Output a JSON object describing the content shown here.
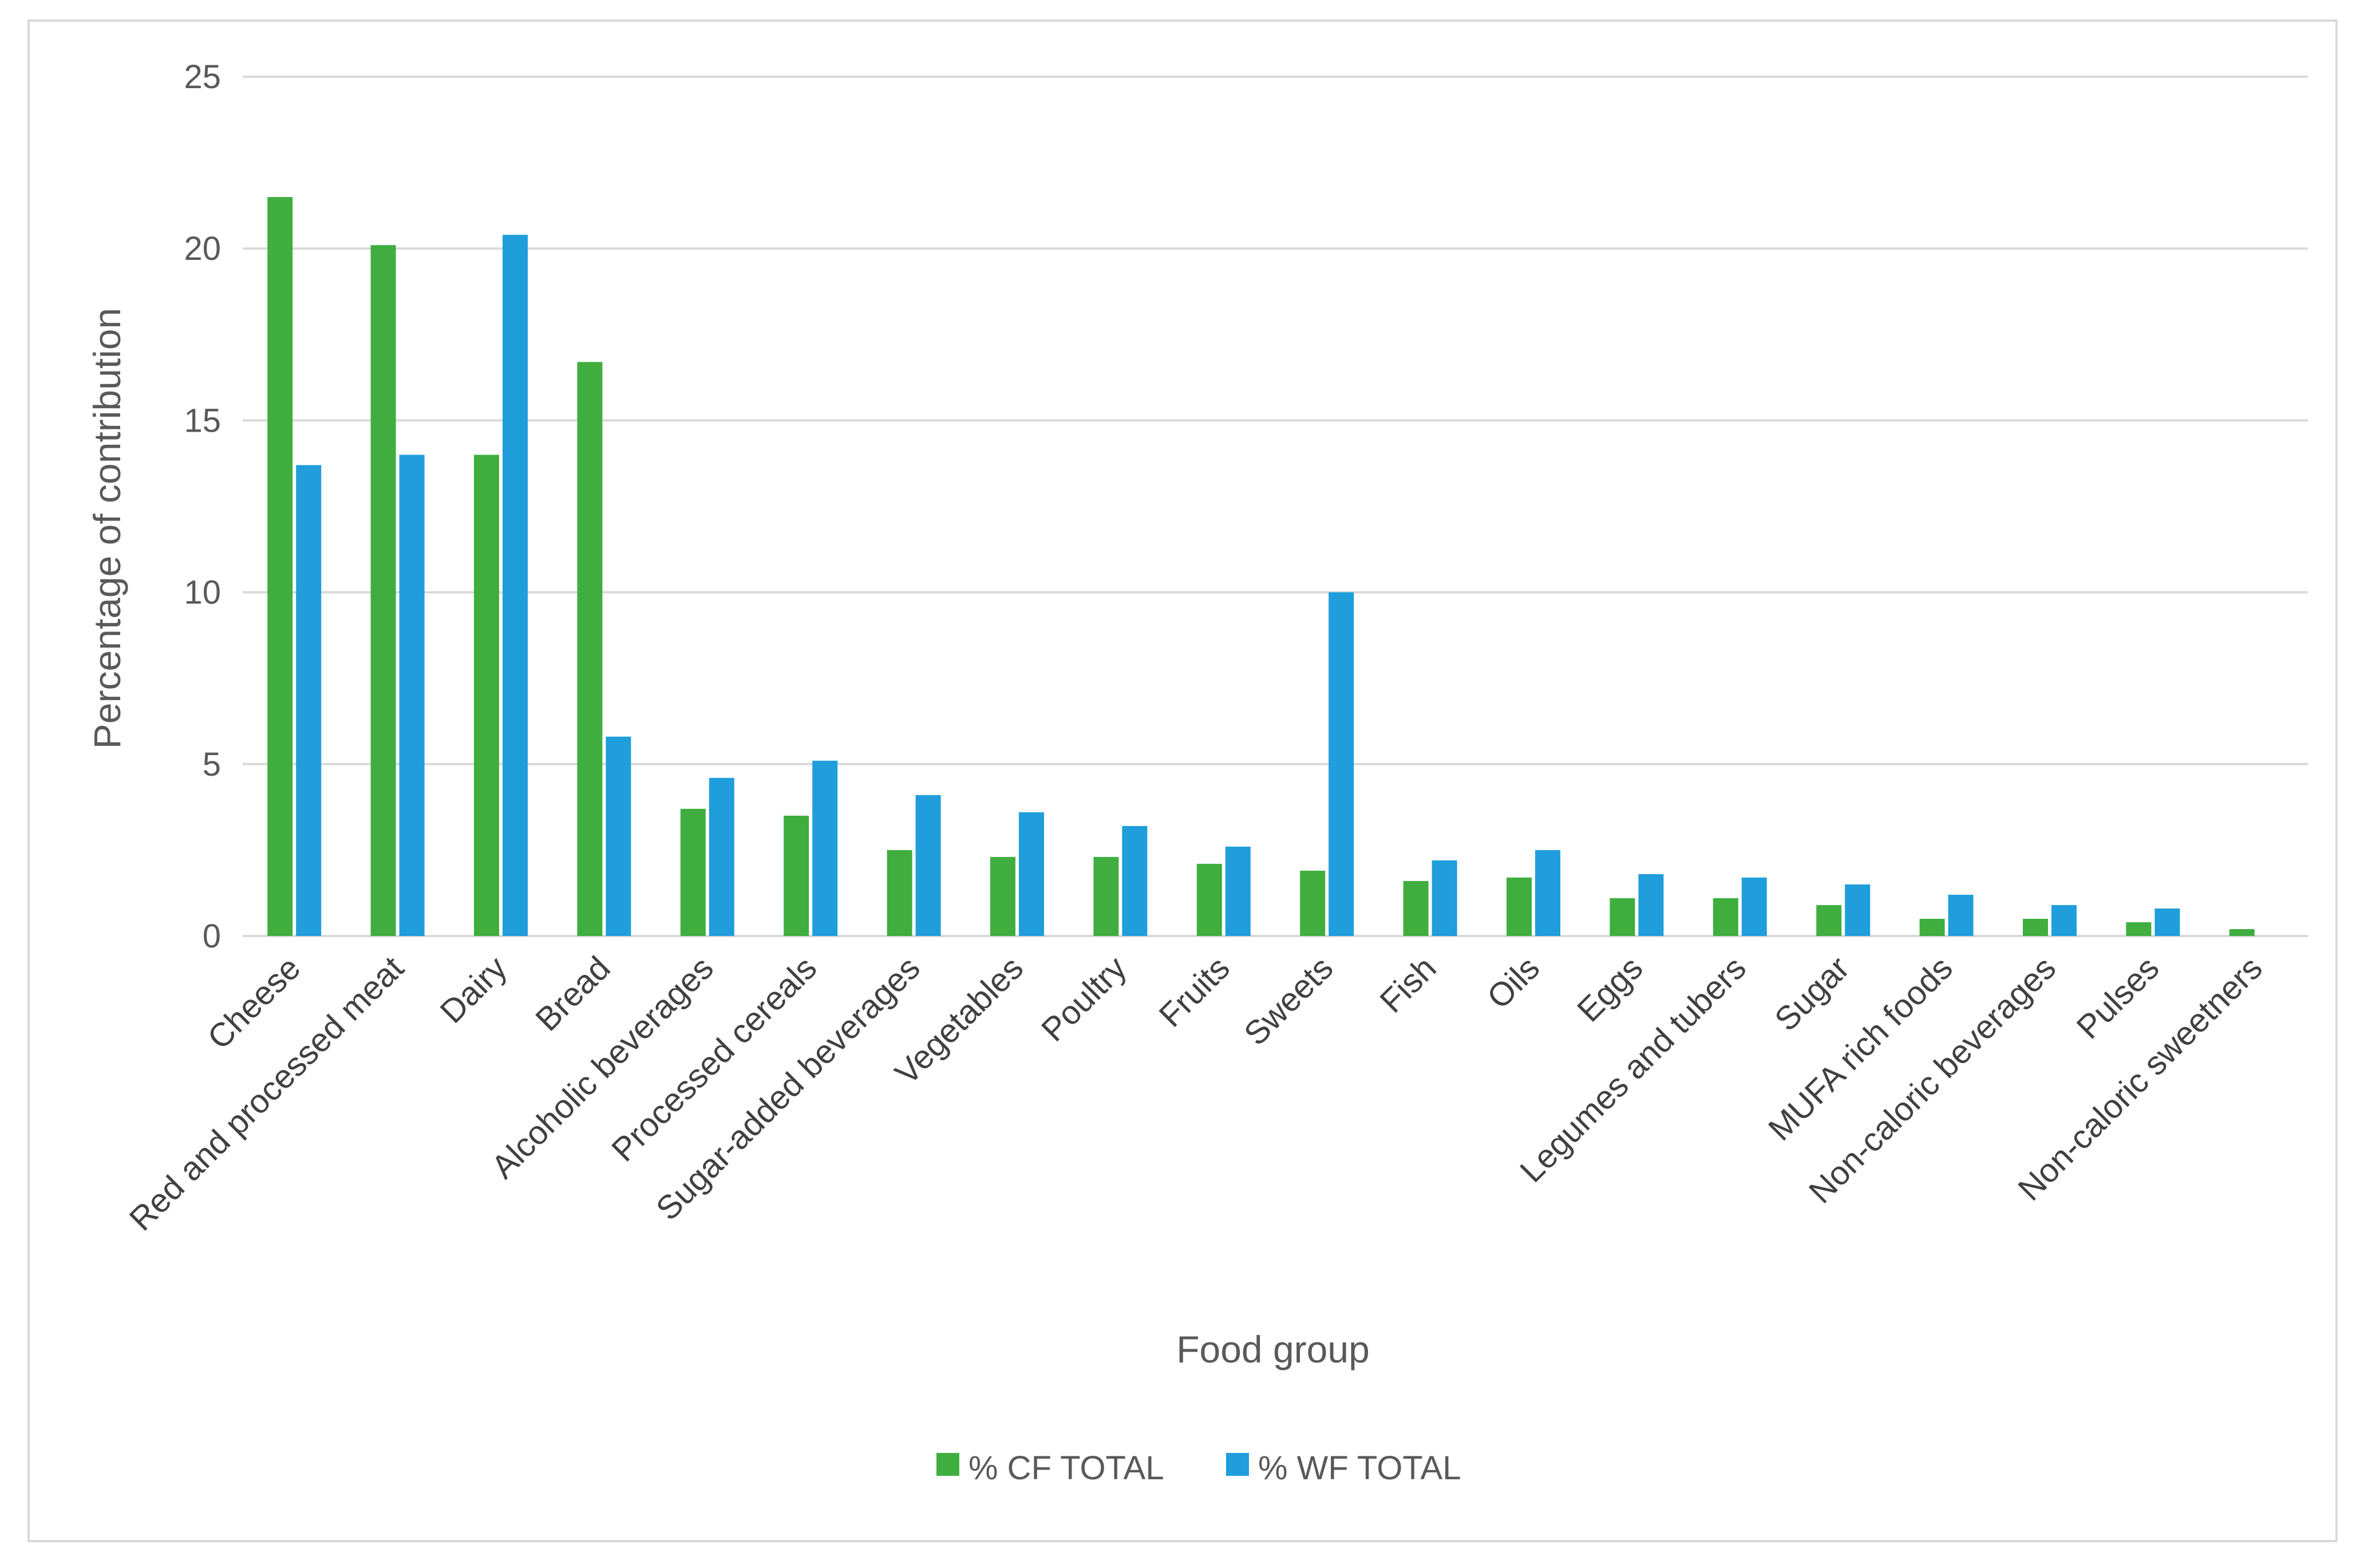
{
  "chart_data": {
    "type": "bar",
    "title": "",
    "xlabel": "Food group",
    "ylabel": "Percentage of contribution",
    "ylim": [
      0,
      25
    ],
    "yticks": [
      0,
      5,
      10,
      15,
      20,
      25
    ],
    "grid": true,
    "legend_position": "bottom-center",
    "categories": [
      "Cheese",
      "Red and processed meat",
      "Dairy",
      "Bread",
      "Alcoholic beverages",
      "Processed cereals",
      "Sugar-added beverages",
      "Vegetables",
      "Poultry",
      "Fruits",
      "Sweets",
      "Fish",
      "Oils",
      "Eggs",
      "Legumes and tubers",
      "Sugar",
      "MUFA rich foods",
      "Non-caloric beverages",
      "Pulses",
      "Non-caloric sweetners"
    ],
    "series": [
      {
        "name": "% CF TOTAL",
        "color": "#3fae3f",
        "values": [
          21.5,
          20.1,
          14.0,
          16.7,
          3.7,
          3.5,
          2.5,
          2.3,
          2.3,
          2.1,
          1.9,
          1.6,
          1.7,
          1.1,
          1.1,
          0.9,
          0.5,
          0.5,
          0.4,
          0.2
        ]
      },
      {
        "name": "% WF TOTAL",
        "color": "#1f9edb",
        "values": [
          13.7,
          14.0,
          20.4,
          5.8,
          4.6,
          5.1,
          4.1,
          3.6,
          3.2,
          2.6,
          10.0,
          2.2,
          2.5,
          1.8,
          1.7,
          1.5,
          1.2,
          0.9,
          0.8,
          0.0
        ]
      }
    ]
  }
}
